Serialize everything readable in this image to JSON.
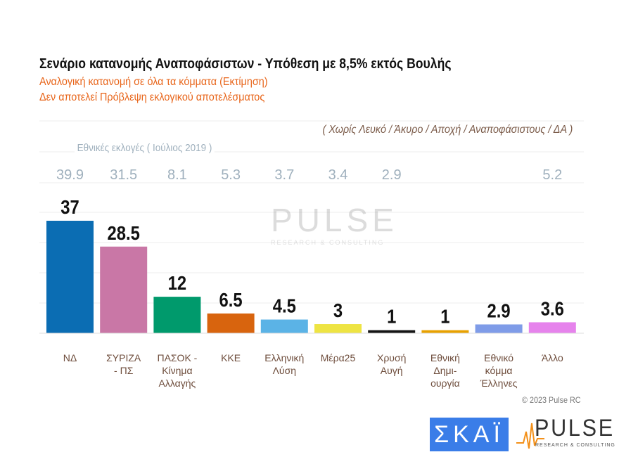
{
  "header": {
    "title": "Σενάριο κατανομής Αναποφάσιστων - Υπόθεση με 8,5% εκτός Βουλής",
    "subtitle1": "Αναλογική κατανομή σε όλα τα κόμματα   (Εκτίμηση)",
    "subtitle2": "Δεν αποτελεί Πρόβλεψη εκλογικού αποτελέσματος",
    "note": "( Χωρίς Λευκό / Άκυρο / Αποχή / Αναποφάσιστους / ΔΑ )",
    "elections_label": "Εθνικές εκλογές  ( Ιούλιος 2019 )"
  },
  "chart_data": {
    "type": "bar",
    "categories": [
      "ΝΔ",
      "ΣΥΡΙΖΑ - ΠΣ",
      "ΠΑΣΟΚ - Κίνημα Αλλαγής",
      "ΚΚΕ",
      "Ελληνική Λύση",
      "Μέρα25",
      "Χρυσή Αυγή",
      "Εθνική Δημι- ουργία",
      "Εθνικό κόμμα Έλληνες",
      "Άλλο"
    ],
    "values": [
      37,
      28.5,
      12,
      6.5,
      4.5,
      3,
      1,
      1,
      2.9,
      3.6
    ],
    "value_labels": [
      "37",
      "28.5",
      "12",
      "6.5",
      "4.5",
      "3",
      "1",
      "1",
      "2.9",
      "3.6"
    ],
    "elections_2019": [
      "39.9",
      "31.5",
      "8.1",
      "5.3",
      "3.7",
      "3.4",
      "2.9",
      "",
      "",
      "5.2"
    ],
    "colors": [
      "#0b6db3",
      "#c977a6",
      "#009a6c",
      "#d8640e",
      "#5bb3e6",
      "#eee443",
      "#141414",
      "#e8a100",
      "#7f9ce8",
      "#e683ec"
    ],
    "ylim": [
      0,
      40
    ],
    "grid": true
  },
  "footer": {
    "credit": "© 2023 Pulse RC",
    "skai_logo": "ΣΚΑΪ",
    "pulse_logo": "PULSE",
    "pulse_tagline": "RESEARCH & CONSULTING"
  },
  "watermark": {
    "name": "PULSE",
    "tagline": "RESEARCH & CONSULTING"
  }
}
